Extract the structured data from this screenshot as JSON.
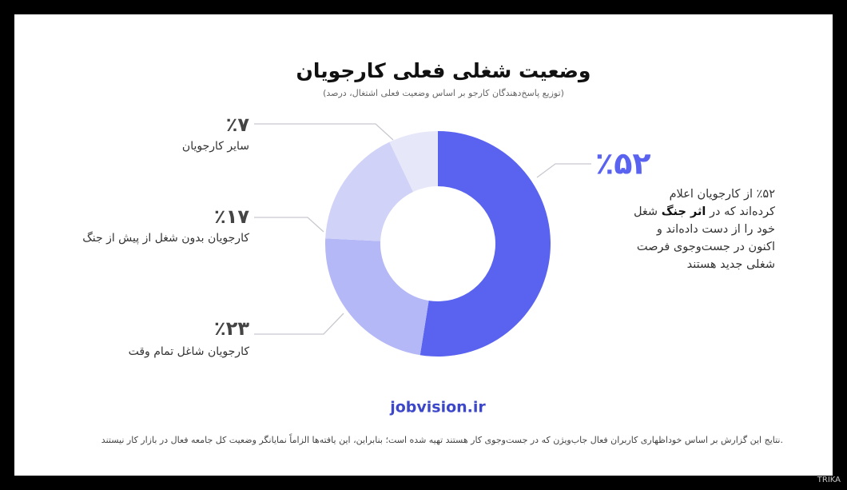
{
  "chart_data": {
    "type": "donut",
    "title": "وضعیت شغلی فعلی کارجویان",
    "subtitle": "(توزیع پاسخ‌دهندگان کارجو بر اساس وضعیت فعلی اشتغال، درصد)",
    "categories": [
      null,
      "کارجویان شاغل تمام وقت",
      "کارجویان بدون شغل از پیش از جنگ",
      "سایر کارجویان"
    ],
    "values": [
      52,
      23,
      17,
      7
    ],
    "value_labels": [
      "٪۵۲",
      "٪۲۳",
      "٪۱۷",
      "٪۷"
    ],
    "colors": [
      "#5a63ef",
      "#b4b8f6",
      "#d0d2f8",
      "#e7e7fa"
    ],
    "description": [
      "٪۵۲ از کارجویان اعلام کرده‌اند که در ",
      "اثر جنگ",
      " شغل خود را از دست داده‌اند و اکنون در جست‌وجوی فرصت شغلی جدید هستند"
    ]
  },
  "source": "jobvision.ir",
  "footnote": "نتایج این گزارش بر اساس خوداظهاری کاربران فعال جاب‌ویژن که در جست‌وجوی کار هستند تهیه شده است؛ بنابراین، این یافته‌ها الزاماً نمایانگر وضعیت کل جامعه فعال در بازار کار نیستند.",
  "watermark": "TRIKA"
}
